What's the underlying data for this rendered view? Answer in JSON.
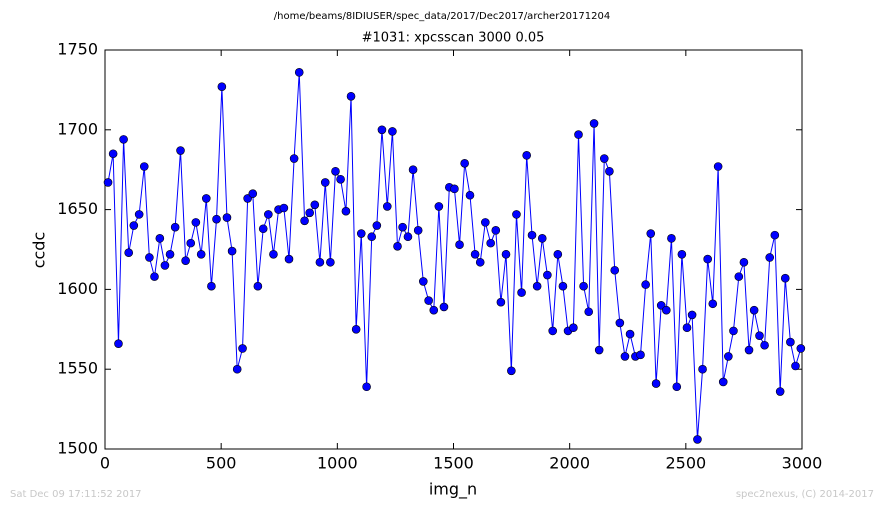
{
  "chart_data": {
    "type": "line",
    "suptitle": "/home/beams/8IDIUSER/spec_data/2017/Dec2017/archer20171204",
    "title": "#1031: xpcsscan 3000 0.05",
    "xlabel": "img_n",
    "ylabel": "ccdc",
    "footer_left": "Sat Dec 09 17:11:52 2017",
    "footer_right": "spec2nexus, (C) 2014-2017",
    "color": "#0000ff",
    "marker": "circle",
    "xlim": [
      0,
      3000
    ],
    "xticks": [
      0,
      500,
      1000,
      1500,
      2000,
      2500,
      3000
    ],
    "ylim": [
      1500,
      1750
    ],
    "yticks": [
      1500,
      1550,
      1600,
      1650,
      1700,
      1750
    ],
    "grid": false,
    "x": [
      13,
      35,
      58,
      80,
      102,
      124,
      147,
      169,
      191,
      213,
      236,
      258,
      280,
      302,
      325,
      347,
      369,
      391,
      414,
      436,
      458,
      480,
      503,
      525,
      547,
      569,
      592,
      614,
      636,
      658,
      681,
      703,
      725,
      747,
      770,
      792,
      814,
      836,
      859,
      881,
      903,
      925,
      948,
      970,
      992,
      1014,
      1037,
      1059,
      1081,
      1103,
      1126,
      1148,
      1170,
      1192,
      1215,
      1237,
      1259,
      1281,
      1304,
      1326,
      1348,
      1370,
      1393,
      1415,
      1437,
      1459,
      1482,
      1504,
      1526,
      1548,
      1571,
      1593,
      1615,
      1637,
      1660,
      1682,
      1704,
      1726,
      1749,
      1771,
      1793,
      1815,
      1838,
      1860,
      1882,
      1904,
      1927,
      1949,
      1971,
      1993,
      2016,
      2038,
      2060,
      2082,
      2105,
      2127,
      2149,
      2171,
      2194,
      2216,
      2238,
      2260,
      2283,
      2305,
      2327,
      2349,
      2372,
      2394,
      2416,
      2438,
      2461,
      2483,
      2505,
      2527,
      2550,
      2572,
      2594,
      2616,
      2639,
      2661,
      2683,
      2705,
      2728,
      2750,
      2772,
      2794,
      2817,
      2839,
      2861,
      2883,
      2906,
      2928,
      2950,
      2972,
      2995
    ],
    "values": [
      1667,
      1685,
      1566,
      1694,
      1623,
      1640,
      1647,
      1677,
      1620,
      1608,
      1632,
      1615,
      1622,
      1639,
      1687,
      1618,
      1629,
      1642,
      1622,
      1657,
      1602,
      1644,
      1727,
      1645,
      1624,
      1550,
      1563,
      1657,
      1660,
      1602,
      1638,
      1647,
      1622,
      1650,
      1651,
      1619,
      1682,
      1736,
      1643,
      1648,
      1653,
      1617,
      1667,
      1617,
      1674,
      1669,
      1649,
      1721,
      1575,
      1635,
      1539,
      1633,
      1640,
      1700,
      1652,
      1699,
      1627,
      1639,
      1633,
      1675,
      1637,
      1605,
      1593,
      1587,
      1652,
      1589,
      1664,
      1663,
      1628,
      1679,
      1659,
      1622,
      1617,
      1642,
      1629,
      1637,
      1592,
      1622,
      1549,
      1647,
      1598,
      1684,
      1634,
      1602,
      1632,
      1609,
      1574,
      1622,
      1602,
      1574,
      1576,
      1697,
      1602,
      1586,
      1704,
      1562,
      1682,
      1674,
      1612,
      1579,
      1558,
      1572,
      1558,
      1559,
      1603,
      1635,
      1541,
      1590,
      1587,
      1632,
      1539,
      1622,
      1576,
      1584,
      1506,
      1550,
      1619,
      1591,
      1677,
      1542,
      1558,
      1574,
      1608,
      1617,
      1562,
      1587,
      1571,
      1565,
      1620,
      1634,
      1536,
      1607,
      1567,
      1552,
      1563
    ]
  }
}
